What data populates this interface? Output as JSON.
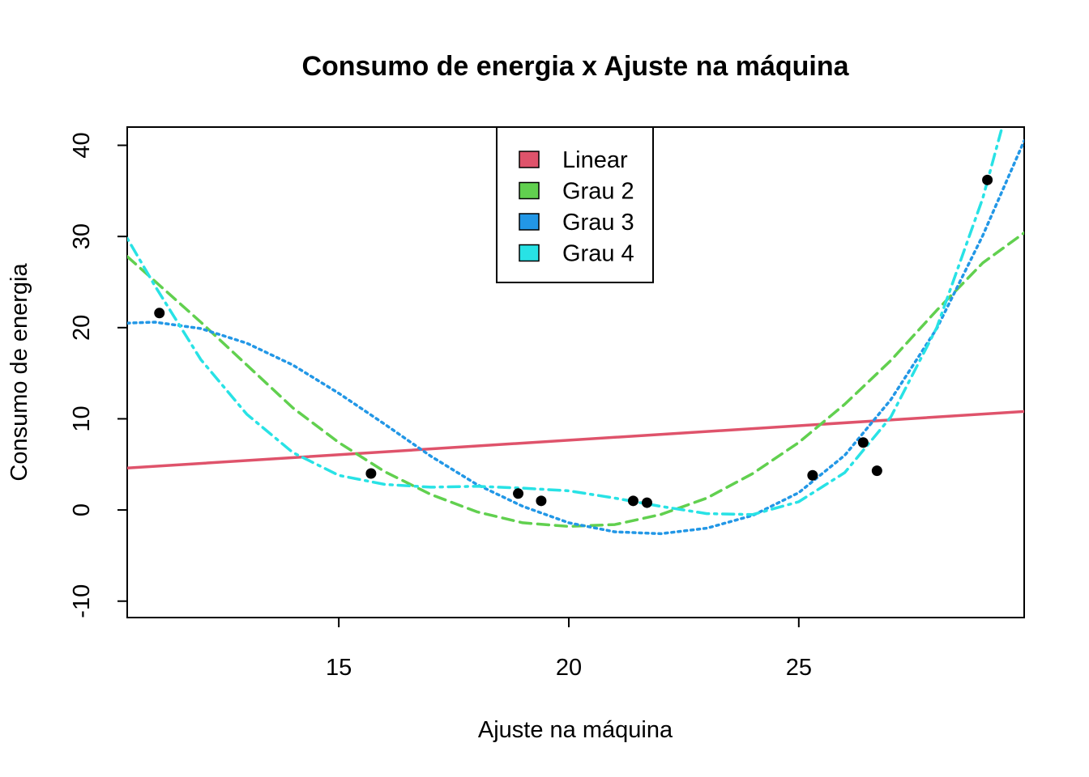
{
  "chart_data": {
    "type": "scatter",
    "title": "Consumo de energia x Ajuste na máquina",
    "xlabel": "Ajuste na máquina",
    "ylabel": "Consumo de energia",
    "xlim": [
      10.4,
      29.9
    ],
    "ylim": [
      -11.8,
      42.0
    ],
    "x_ticks": [
      15,
      20,
      25
    ],
    "y_ticks": [
      -10,
      0,
      10,
      20,
      30,
      40
    ],
    "grid": false,
    "legend_position": "top-center",
    "points": [
      {
        "x": 11.1,
        "y": 21.6
      },
      {
        "x": 15.7,
        "y": 4.0
      },
      {
        "x": 18.9,
        "y": 1.8
      },
      {
        "x": 19.4,
        "y": 1.0
      },
      {
        "x": 21.4,
        "y": 1.0
      },
      {
        "x": 21.7,
        "y": 0.8
      },
      {
        "x": 25.3,
        "y": 3.8
      },
      {
        "x": 26.4,
        "y": 7.4
      },
      {
        "x": 26.7,
        "y": 4.3
      },
      {
        "x": 29.1,
        "y": 36.2
      }
    ],
    "series": [
      {
        "name": "Linear",
        "color": "#DF536B",
        "style": "solid",
        "points": [
          [
            10.4,
            4.6
          ],
          [
            29.9,
            10.8
          ]
        ]
      },
      {
        "name": "Grau 2",
        "color": "#61D04F",
        "style": "dashed",
        "points": [
          [
            10.4,
            27.8
          ],
          [
            12,
            20.6
          ],
          [
            14,
            11.2
          ],
          [
            15,
            7.4
          ],
          [
            16,
            4.2
          ],
          [
            17,
            1.7
          ],
          [
            18,
            -0.2
          ],
          [
            19,
            -1.4
          ],
          [
            20,
            -1.8
          ],
          [
            21,
            -1.6
          ],
          [
            22,
            -0.5
          ],
          [
            23,
            1.3
          ],
          [
            24,
            4.0
          ],
          [
            25,
            7.4
          ],
          [
            26,
            11.6
          ],
          [
            27,
            16.4
          ],
          [
            28,
            21.9
          ],
          [
            29,
            27.1
          ],
          [
            29.9,
            30.4
          ]
        ]
      },
      {
        "name": "Grau 3",
        "color": "#2297E6",
        "style": "dotted",
        "points": [
          [
            10.4,
            20.5
          ],
          [
            11,
            20.6
          ],
          [
            12,
            19.9
          ],
          [
            13,
            18.3
          ],
          [
            14,
            15.9
          ],
          [
            15,
            12.8
          ],
          [
            16,
            9.4
          ],
          [
            17,
            5.9
          ],
          [
            18,
            2.8
          ],
          [
            19,
            0.4
          ],
          [
            20,
            -1.4
          ],
          [
            21,
            -2.4
          ],
          [
            22,
            -2.6
          ],
          [
            23,
            -2.0
          ],
          [
            24,
            -0.6
          ],
          [
            25,
            1.9
          ],
          [
            26,
            6.0
          ],
          [
            27,
            12.1
          ],
          [
            28,
            19.9
          ],
          [
            29,
            30.1
          ],
          [
            29.9,
            40.5
          ]
        ]
      },
      {
        "name": "Grau 4",
        "color": "#28E2E5",
        "style": "dotdash",
        "points": [
          [
            10.4,
            29.8
          ],
          [
            11,
            24.6
          ],
          [
            12,
            16.5
          ],
          [
            13,
            10.5
          ],
          [
            14,
            6.3
          ],
          [
            15,
            3.8
          ],
          [
            16,
            2.8
          ],
          [
            17,
            2.5
          ],
          [
            18,
            2.6
          ],
          [
            19,
            2.4
          ],
          [
            20,
            2.1
          ],
          [
            21,
            1.3
          ],
          [
            22,
            0.4
          ],
          [
            23,
            -0.4
          ],
          [
            24,
            -0.5
          ],
          [
            25,
            0.9
          ],
          [
            26,
            4.1
          ],
          [
            27,
            10.2
          ],
          [
            28,
            20.0
          ],
          [
            29,
            34.2
          ],
          [
            29.4,
            41.6
          ]
        ]
      }
    ]
  }
}
